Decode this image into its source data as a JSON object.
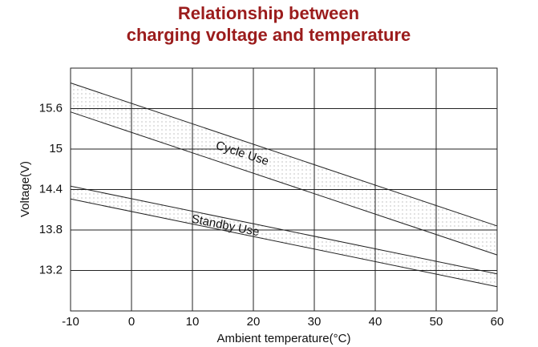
{
  "chart_data": {
    "type": "line",
    "title": [
      "Relationship between",
      "charging voltage and temperature"
    ],
    "x_label": "Ambient temperature(°C)",
    "y_label": "Voltage(V)",
    "x": [
      -10,
      60
    ],
    "series": [
      {
        "color": "#222222",
        "values": [
          15.98,
          13.86
        ]
      },
      {
        "color": "#222222",
        "values": [
          15.55,
          13.43
        ]
      },
      {
        "color": "#222222",
        "values": [
          14.45,
          13.15
        ]
      },
      {
        "color": "#222222",
        "values": [
          14.26,
          12.96
        ]
      }
    ],
    "annotations": [
      "Cycle Use",
      "Standby Use"
    ],
    "xlim": [
      -10,
      60
    ],
    "xticks": [
      -10,
      0,
      10,
      20,
      30,
      40,
      50,
      60
    ],
    "ylim": [
      12.6,
      16.2
    ],
    "yticks": [
      13.2,
      13.8,
      14.4,
      15.0,
      15.6
    ],
    "grid": true
  }
}
